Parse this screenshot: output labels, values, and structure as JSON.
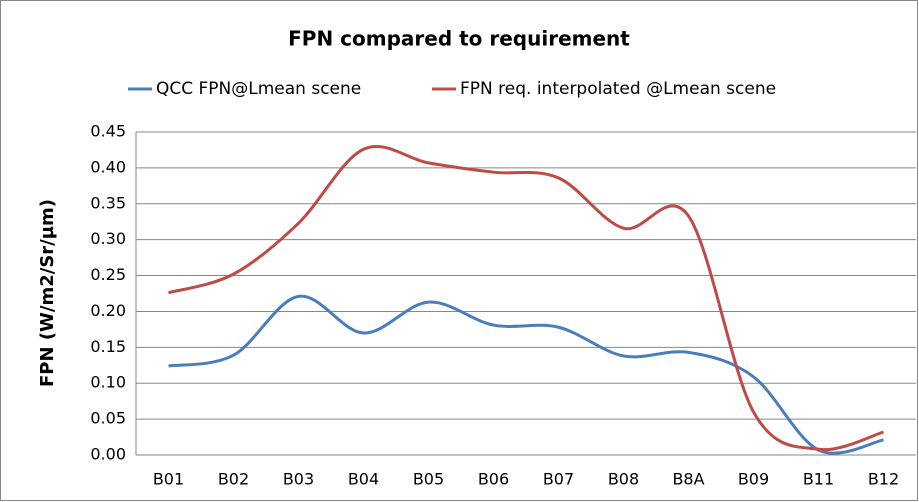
{
  "chart_data": {
    "type": "line",
    "title": "FPN compared to requirement",
    "y_label": "FPN (W/m2/Sr/µm)",
    "categories": [
      "B01",
      "B02",
      "B03",
      "B04",
      "B05",
      "B06",
      "B07",
      "B08",
      "B8A",
      "B09",
      "B11",
      "B12"
    ],
    "series": [
      {
        "name": "QCC FPN@Lmean scene",
        "color": "#4a7ebb",
        "values": [
          0.124,
          0.139,
          0.221,
          0.17,
          0.213,
          0.181,
          0.178,
          0.138,
          0.143,
          0.109,
          0.007,
          0.021
        ]
      },
      {
        "name": "FPN req. interpolated @Lmean scene",
        "color": "#be4b48",
        "values": [
          0.226,
          0.252,
          0.323,
          0.426,
          0.407,
          0.394,
          0.386,
          0.316,
          0.333,
          0.06,
          0.008,
          0.032
        ]
      }
    ],
    "ylim": [
      0,
      0.45
    ],
    "yticks": [
      {
        "value": 0,
        "label": "0.00"
      },
      {
        "value": 0.05,
        "label": "0.05"
      },
      {
        "value": 0.1,
        "label": "0.10"
      },
      {
        "value": 0.15,
        "label": "0.15"
      },
      {
        "value": 0.2,
        "label": "0.20"
      },
      {
        "value": 0.25,
        "label": "0.25"
      },
      {
        "value": 0.3,
        "label": "0.30"
      },
      {
        "value": 0.35,
        "label": "0.35"
      },
      {
        "value": 0.4,
        "label": "0.40"
      },
      {
        "value": 0.45,
        "label": "0.45"
      }
    ],
    "grid": true,
    "smooth": true,
    "legend": "top"
  }
}
